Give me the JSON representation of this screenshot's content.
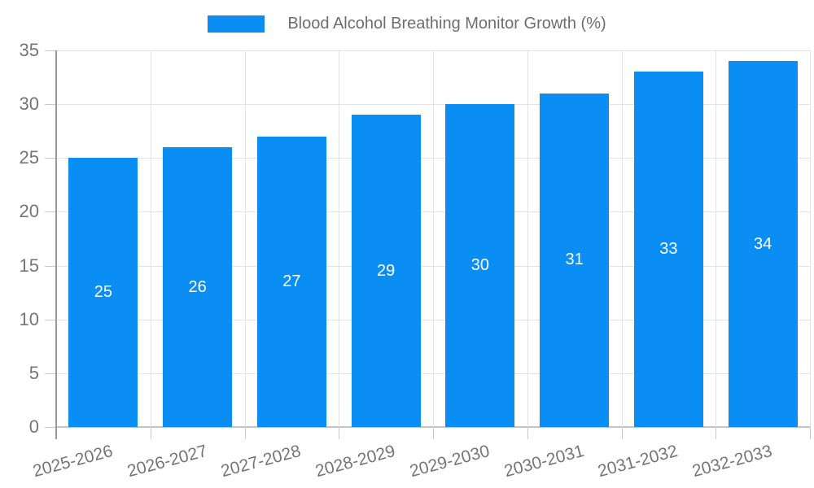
{
  "legend": {
    "label": "Blood Alcohol Breathing Monitor Growth (%)",
    "swatch_color": "#0a8ef4"
  },
  "chart_data": {
    "type": "bar",
    "title": "Blood Alcohol Breathing Monitor Growth (%)",
    "categories": [
      "2025-2026",
      "2026-2027",
      "2027-2028",
      "2028-2029",
      "2029-2030",
      "2030-2031",
      "2031-2032",
      "2032-2033"
    ],
    "values": [
      25,
      26,
      27,
      29,
      30,
      31,
      33,
      34
    ],
    "xlabel": "",
    "ylabel": "",
    "ylim": [
      0,
      35
    ],
    "yticks": [
      0,
      5,
      10,
      15,
      20,
      25,
      30,
      35
    ],
    "grid": true,
    "legend_position": "top",
    "bar_color": "#0a8ef4",
    "value_label_color": "#ffffff",
    "axis_label_color": "#757575",
    "gridline_color": "#e3e3e3",
    "axis_line_color": "#9a9a9a"
  }
}
